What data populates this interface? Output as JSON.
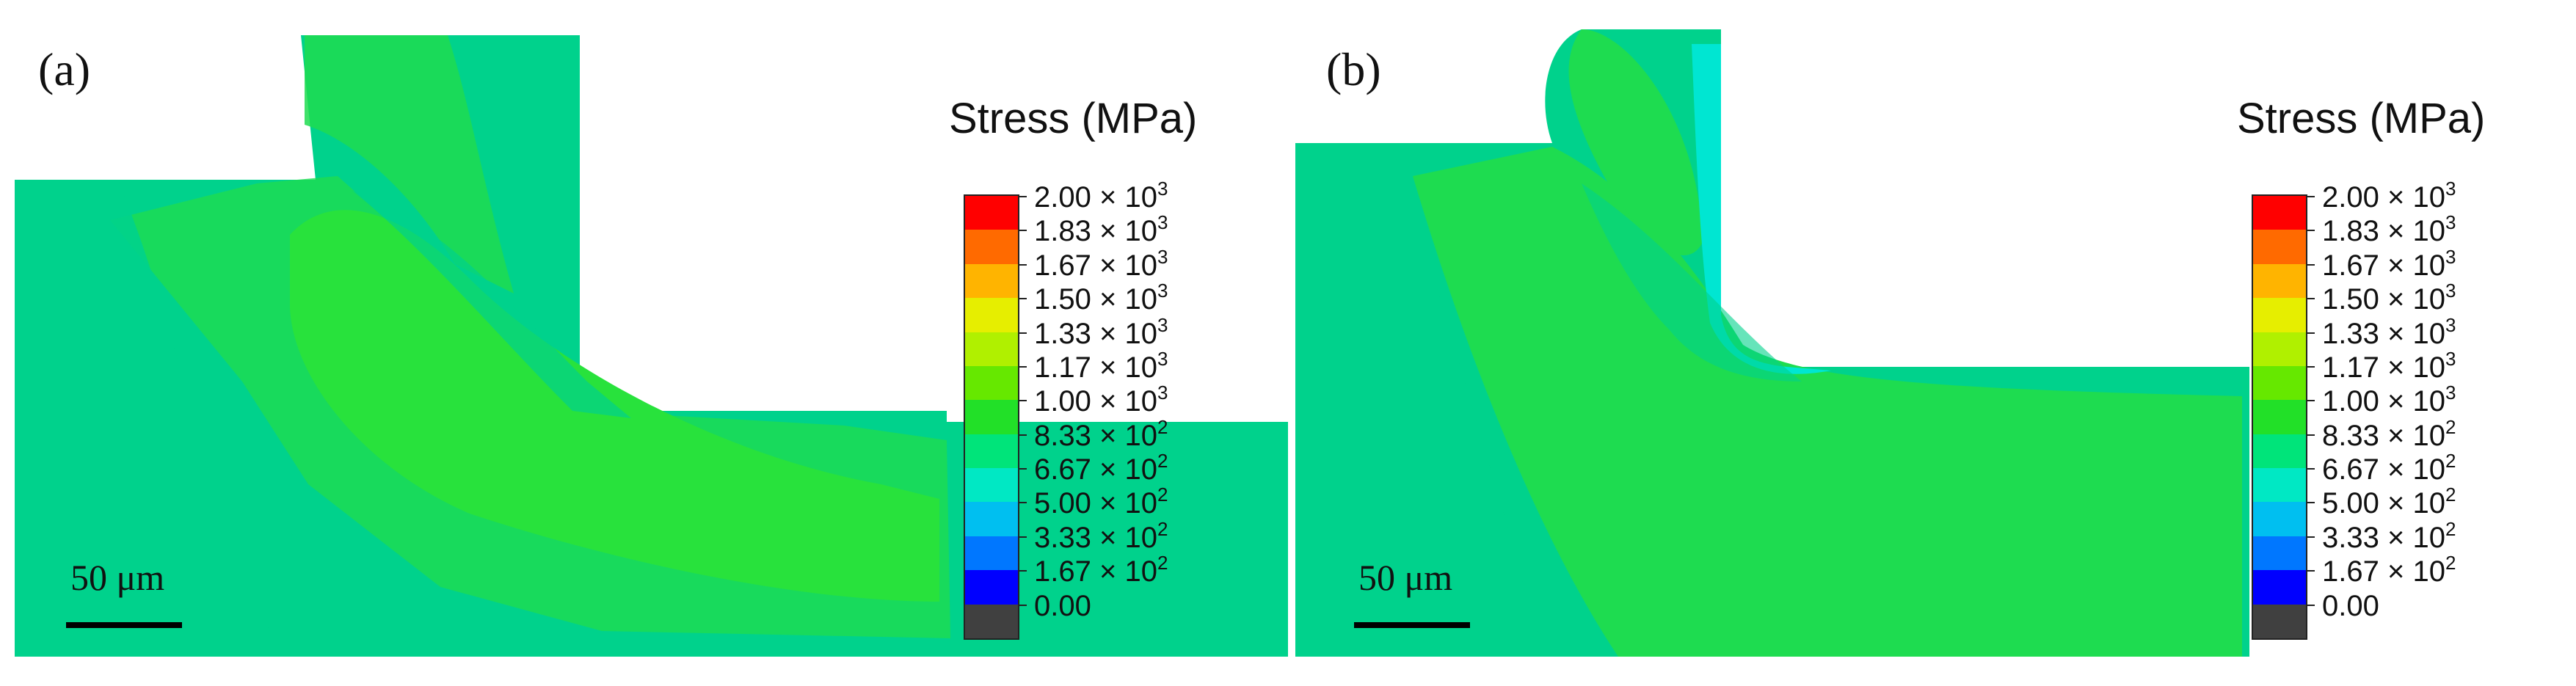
{
  "figure": {
    "panels": [
      {
        "label": "(a)",
        "legend_title": "Stress (MPa)",
        "scale_bar_label": "50 μm"
      },
      {
        "label": "(b)",
        "legend_title": "Stress (MPa)",
        "scale_bar_label": "50 μm"
      }
    ],
    "legend": {
      "levels": [
        {
          "mantissa": "2.00",
          "exponent": "3"
        },
        {
          "mantissa": "1.83",
          "exponent": "3"
        },
        {
          "mantissa": "1.67",
          "exponent": "3"
        },
        {
          "mantissa": "1.50",
          "exponent": "3"
        },
        {
          "mantissa": "1.33",
          "exponent": "3"
        },
        {
          "mantissa": "1.17",
          "exponent": "3"
        },
        {
          "mantissa": "1.00",
          "exponent": "3"
        },
        {
          "mantissa": "8.33",
          "exponent": "2"
        },
        {
          "mantissa": "6.67",
          "exponent": "2"
        },
        {
          "mantissa": "5.00",
          "exponent": "2"
        },
        {
          "mantissa": "3.33",
          "exponent": "2"
        },
        {
          "mantissa": "1.67",
          "exponent": "2"
        },
        {
          "mantissa": "0.00",
          "exponent": ""
        }
      ],
      "band_colors": [
        "#ff0000",
        "#ff6a00",
        "#ffb400",
        "#e6ee00",
        "#b0f000",
        "#66e800",
        "#22e028",
        "#00e47a",
        "#00e8c4",
        "#00bff0",
        "#0077ff",
        "#0000ff",
        "#404040"
      ]
    },
    "colors": {
      "mesh_outer": "#00d28c",
      "mesh_inner": "#1edc50",
      "mesh_band": "#28e23c",
      "mesh_blue": "#00e6d2"
    }
  }
}
